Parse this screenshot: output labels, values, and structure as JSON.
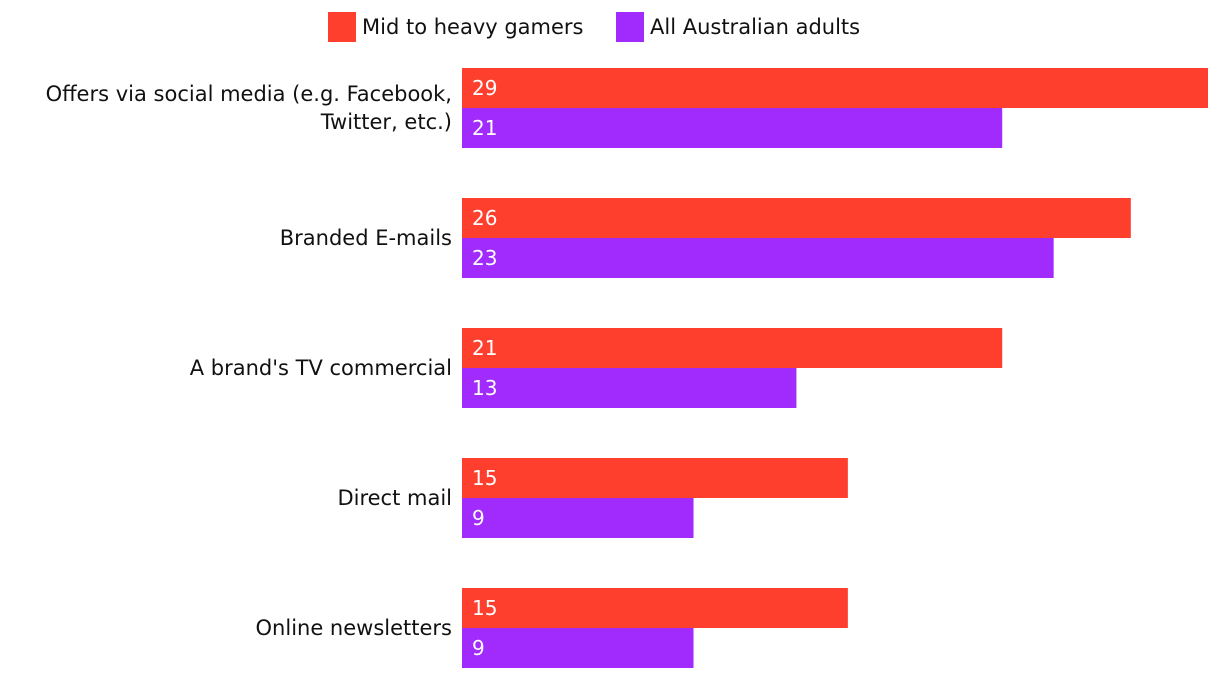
{
  "chart_data": {
    "type": "bar",
    "orientation": "horizontal",
    "categories": [
      [
        "Offers via social media (e.g. Facebook,",
        "Twitter, etc.)"
      ],
      [
        "Branded E-mails"
      ],
      [
        "A brand's TV commercial"
      ],
      [
        "Direct mail"
      ],
      [
        "Online newsletters"
      ]
    ],
    "series": [
      {
        "name": "Mid to heavy gamers",
        "color": "#ff3f2e",
        "values": [
          29,
          26,
          21,
          15,
          15
        ]
      },
      {
        "name": "All Australian adults",
        "color": "#a12afc",
        "values": [
          21,
          23,
          13,
          9,
          9
        ]
      }
    ],
    "xlim": [
      0,
      29
    ],
    "legend_position": "top-center",
    "grid": false,
    "data_labels": true
  }
}
